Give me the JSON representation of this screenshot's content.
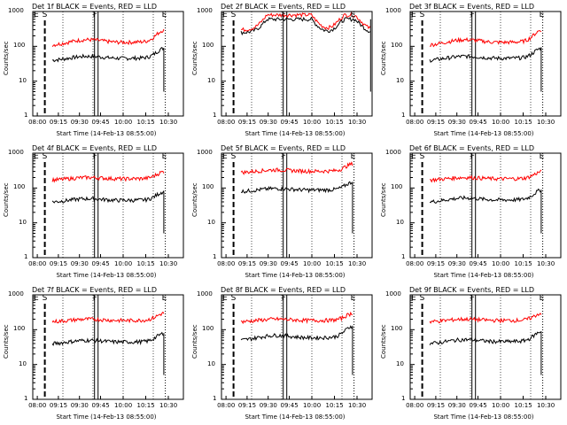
{
  "common": {
    "x_tick_labels": [
      "08:00",
      "09:15",
      "09:30",
      "09:45",
      "10:00",
      "10:15",
      "10:30"
    ],
    "y_tick_labels": [
      "1",
      "10",
      "100",
      "1000"
    ],
    "xlabel": "Start Time (14-Feb-13 08:55:00)",
    "ylabel": "Counts/sec",
    "markers": [
      "E",
      "S",
      "F",
      "E"
    ],
    "colors": {
      "events": "#000000",
      "lld": "#ff0000"
    }
  },
  "chart_data": [
    {
      "type": "line",
      "title": "Det 1f BLACK = Events, RED = LLD",
      "profile": "A",
      "ylim": [
        1,
        1000
      ],
      "yscale": "log",
      "series": [
        {
          "name": "BLACK",
          "values": [
            40,
            90
          ]
        },
        {
          "name": "RED",
          "values": [
            110,
            300
          ]
        }
      ]
    },
    {
      "type": "line",
      "title": "Det 2f BLACK = Events, RED = LLD",
      "profile": "B",
      "ylim": [
        1,
        1000
      ],
      "yscale": "log",
      "series": [
        {
          "name": "BLACK",
          "values": [
            250,
            600
          ]
        },
        {
          "name": "RED",
          "values": [
            300,
            800
          ]
        }
      ]
    },
    {
      "type": "line",
      "title": "Det 3f BLACK = Events, RED = LLD",
      "profile": "A",
      "ylim": [
        1,
        1000
      ],
      "yscale": "log",
      "series": [
        {
          "name": "BLACK",
          "values": [
            40,
            90
          ]
        },
        {
          "name": "RED",
          "values": [
            110,
            300
          ]
        }
      ]
    },
    {
      "type": "line",
      "title": "Det 4f BLACK = Events, RED = LLD",
      "profile": "A",
      "ylim": [
        1,
        1000
      ],
      "yscale": "log",
      "series": [
        {
          "name": "BLACK",
          "values": [
            40,
            80
          ]
        },
        {
          "name": "RED",
          "values": [
            170,
            300
          ]
        }
      ]
    },
    {
      "type": "line",
      "title": "Det 5f BLACK = Events, RED = LLD",
      "profile": "A",
      "ylim": [
        1,
        1000
      ],
      "yscale": "log",
      "series": [
        {
          "name": "BLACK",
          "values": [
            80,
            150
          ]
        },
        {
          "name": "RED",
          "values": [
            280,
            500
          ]
        }
      ]
    },
    {
      "type": "line",
      "title": "Det 6f BLACK = Events, RED = LLD",
      "profile": "A",
      "ylim": [
        1,
        1000
      ],
      "yscale": "log",
      "series": [
        {
          "name": "BLACK",
          "values": [
            40,
            90
          ]
        },
        {
          "name": "RED",
          "values": [
            170,
            300
          ]
        }
      ]
    },
    {
      "type": "line",
      "title": "Det 7f BLACK = Events, RED = LLD",
      "profile": "A",
      "ylim": [
        1,
        1000
      ],
      "yscale": "log",
      "series": [
        {
          "name": "BLACK",
          "values": [
            40,
            80
          ]
        },
        {
          "name": "RED",
          "values": [
            170,
            300
          ]
        }
      ]
    },
    {
      "type": "line",
      "title": "Det 8f BLACK = Events, RED = LLD",
      "profile": "A",
      "ylim": [
        1,
        1000
      ],
      "yscale": "log",
      "series": [
        {
          "name": "BLACK",
          "values": [
            50,
            130
          ]
        },
        {
          "name": "RED",
          "values": [
            170,
            300
          ]
        }
      ]
    },
    {
      "type": "line",
      "title": "Det 9f BLACK = Events, RED = LLD",
      "profile": "A",
      "ylim": [
        1,
        1000
      ],
      "yscale": "log",
      "series": [
        {
          "name": "BLACK",
          "values": [
            40,
            90
          ]
        },
        {
          "name": "RED",
          "values": [
            170,
            300
          ]
        }
      ]
    }
  ]
}
